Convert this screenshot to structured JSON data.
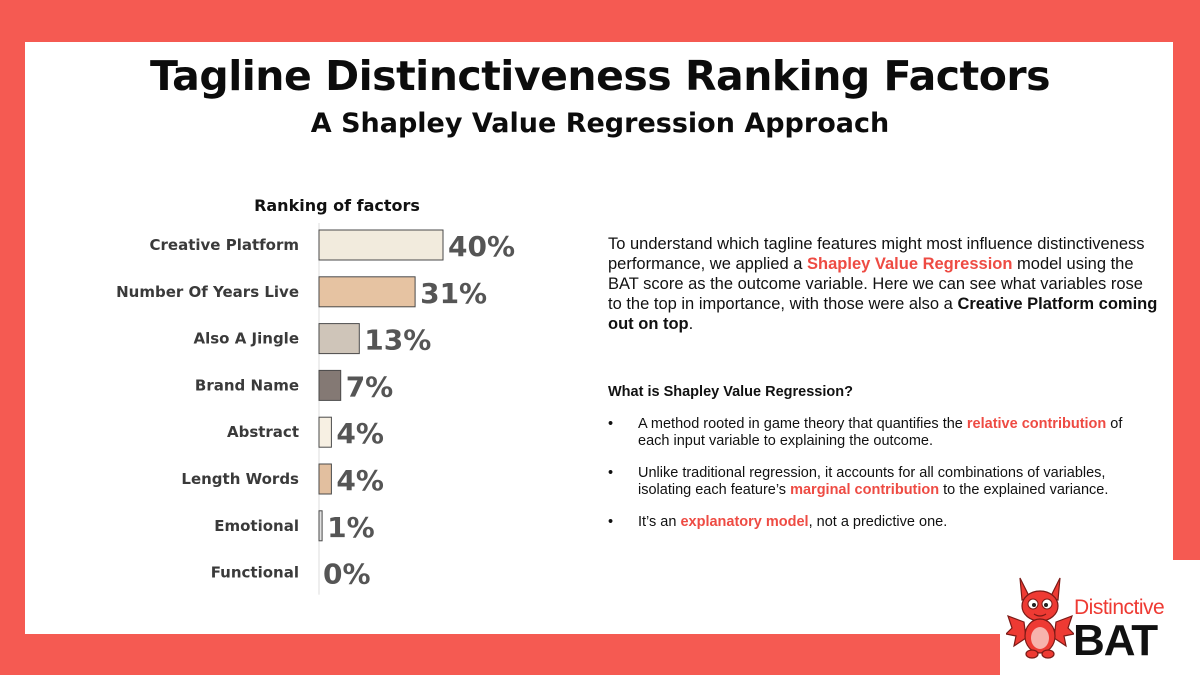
{
  "title": "Tagline Distinctiveness Ranking Factors",
  "subtitle": "A Shapley Value Regression Approach",
  "chart_data": {
    "type": "bar",
    "orientation": "horizontal",
    "title": "Ranking of factors",
    "categories": [
      "Creative Platform",
      "Number Of Years Live",
      "Also A Jingle",
      "Brand Name",
      "Abstract",
      "Length Words",
      "Emotional",
      "Functional"
    ],
    "values": [
      40,
      31,
      13,
      7,
      4,
      4,
      1,
      0
    ],
    "value_labels": [
      "40%",
      "31%",
      "13%",
      "7%",
      "4%",
      "4%",
      "1%",
      "0%"
    ],
    "colors": [
      "#f2ebdd",
      "#e6c3a2",
      "#cfc5b9",
      "#847974",
      "#f7f0e3",
      "#e2bf9f",
      "#e2e2e2",
      "#ffffff"
    ],
    "xlim": [
      0,
      40
    ],
    "grid": false,
    "legend": "none"
  },
  "body": {
    "p1": "To understand which tagline features might most influence distinctiveness performance, we applied a ",
    "p1_hl": "Shapley Value Regression",
    "p2": " model using the BAT score as the outcome variable. Here we can see what variables rose to the top in importance, with those were also a ",
    "p2_strong": "Creative Platform coming out on top",
    "p3": "."
  },
  "question": "What is Shapley Value Regression?",
  "bullets": {
    "dot": "•",
    "b1_pre": "A method rooted in game theory that quantifies the ",
    "b1_hl": "relative contribution",
    "b1_post": " of each input variable to explaining the outcome.",
    "b2_pre": "Unlike traditional regression, it accounts for all combinations of variables, isolating each feature’s ",
    "b2_hl": "marginal contribution",
    "b2_post": " to the explained variance.",
    "b3_pre": "It’s an ",
    "b3_hl": "explanatory model",
    "b3_post": ", not a predictive one."
  },
  "logo": {
    "line1": "Distinctive",
    "line2": "BAT",
    "icon": "bat-mascot-icon",
    "accent": "#ee3a33"
  },
  "colors": {
    "frame": "#f55a52",
    "highlight": "#ee4b43"
  }
}
